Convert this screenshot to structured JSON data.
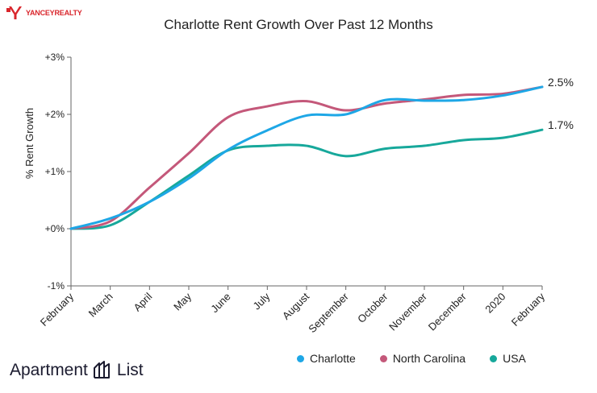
{
  "brand": {
    "name": "YANCEYREALTY",
    "icon": "yancey-logo-icon",
    "color": "#d9262c"
  },
  "footer": {
    "word1": "Apartment",
    "word2": "List",
    "icon": "apartment-list-logo-icon"
  },
  "chart_data": {
    "type": "line",
    "title": "Charlotte Rent Growth Over Past 12 Months",
    "xlabel": "",
    "ylabel": "% Rent Growth",
    "categories": [
      "February",
      "March",
      "April",
      "May",
      "June",
      "July",
      "August",
      "September",
      "October",
      "November",
      "December",
      "2020",
      "February"
    ],
    "yticks": [
      {
        "value": 3,
        "label": "+3%"
      },
      {
        "value": 2,
        "label": "+2%"
      },
      {
        "value": 1,
        "label": "+1%"
      },
      {
        "value": 0,
        "label": "+0%"
      },
      {
        "value": -1,
        "label": "-1%"
      }
    ],
    "ylim": [
      -1,
      3
    ],
    "grid": false,
    "legend_position": "bottom",
    "series": [
      {
        "name": "Charlotte",
        "color": "#1ea7e6",
        "values": [
          0,
          0.18,
          0.47,
          0.88,
          1.38,
          1.72,
          1.98,
          2.0,
          2.25,
          2.24,
          2.25,
          2.33,
          2.48
        ],
        "end_label": ""
      },
      {
        "name": "North Carolina",
        "color": "#c4587a",
        "values": [
          0,
          0.13,
          0.72,
          1.32,
          1.95,
          2.14,
          2.23,
          2.07,
          2.19,
          2.26,
          2.34,
          2.36,
          2.48
        ],
        "end_label": "2.5%"
      },
      {
        "name": "USA",
        "color": "#17a89b",
        "values": [
          0,
          0.06,
          0.47,
          0.93,
          1.37,
          1.45,
          1.45,
          1.27,
          1.4,
          1.45,
          1.55,
          1.59,
          1.73
        ],
        "end_label": "1.7%"
      }
    ]
  }
}
